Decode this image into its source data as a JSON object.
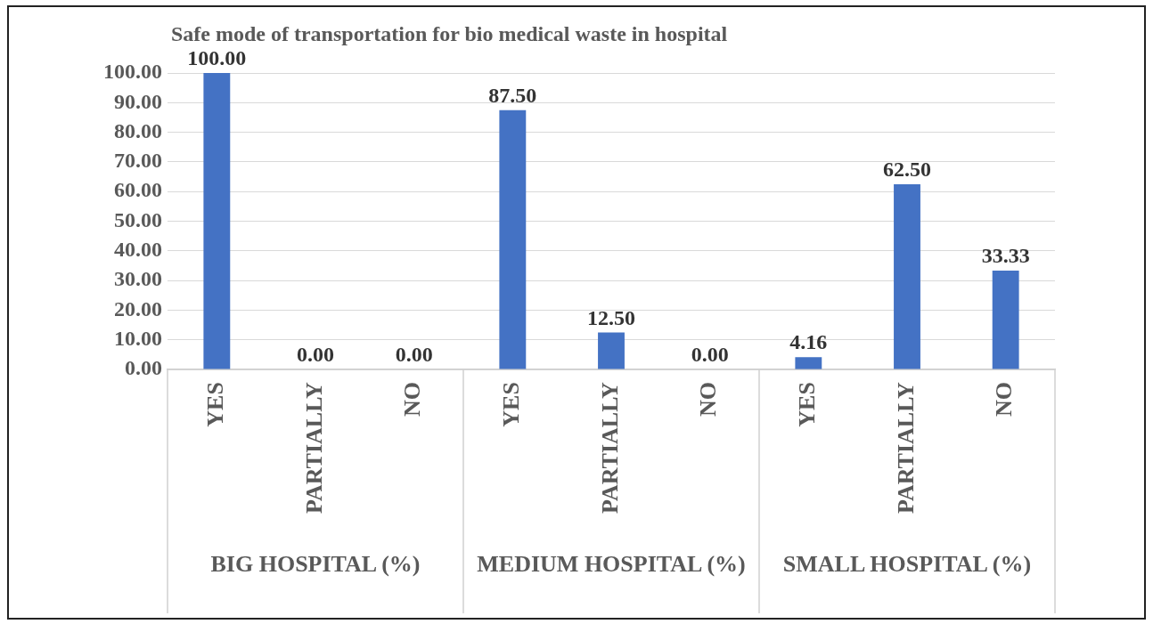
{
  "chart_data": {
    "type": "bar",
    "title": "Safe mode of transportation for bio medical waste in hospital",
    "categories": [
      "YES",
      "PARTIALLY",
      "NO",
      "YES",
      "PARTIALLY",
      "NO",
      "YES",
      "PARTIALLY",
      "NO"
    ],
    "values": [
      100.0,
      0.0,
      0.0,
      87.5,
      12.5,
      0.0,
      4.16,
      62.5,
      33.33
    ],
    "color": "#4472c4",
    "value_labels": [
      "100.00",
      "0.00",
      "0.00",
      "87.50",
      "12.50",
      "0.00",
      "4.16",
      "62.50",
      "33.33"
    ],
    "annotations": [
      "BIG HOSPITAL (%)",
      "MEDIUM HOSPITAL (%)",
      "SMALL HOSPITAL (%)"
    ],
    "ylim": [
      0,
      100
    ],
    "yticks": [
      {
        "value": 0,
        "label": "0.00"
      },
      {
        "value": 10,
        "label": "10.00"
      },
      {
        "value": 20,
        "label": "20.00"
      },
      {
        "value": 30,
        "label": "30.00"
      },
      {
        "value": 40,
        "label": "40.00"
      },
      {
        "value": 50,
        "label": "50.00"
      },
      {
        "value": 60,
        "label": "60.00"
      },
      {
        "value": 70,
        "label": "70.00"
      },
      {
        "value": 80,
        "label": "80.00"
      },
      {
        "value": 90,
        "label": "90.00"
      },
      {
        "value": 100,
        "label": "100.00"
      }
    ],
    "grid": "y",
    "legend": false
  }
}
